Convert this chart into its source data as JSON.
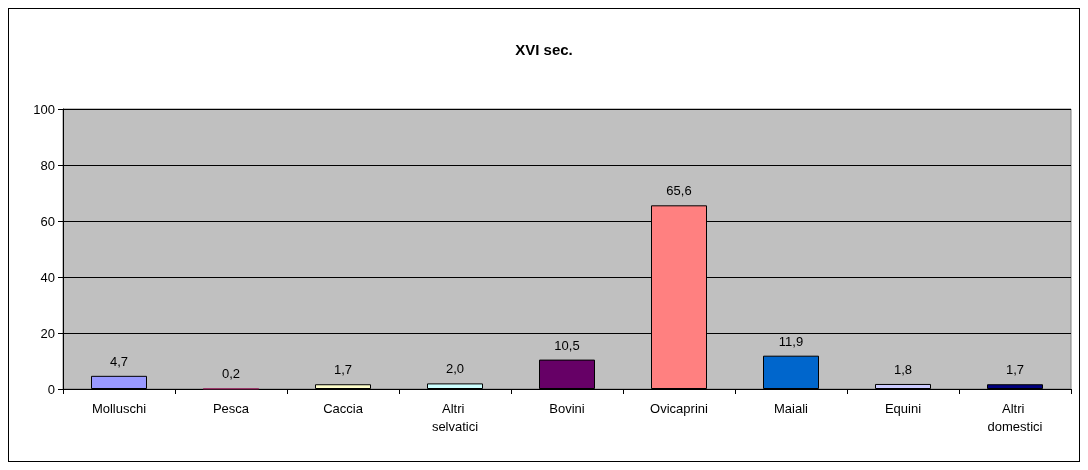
{
  "chart_data": {
    "type": "bar",
    "title": "XVI sec.",
    "categories": [
      "Molluschi",
      "Pesca",
      "Caccia",
      "Altri selvatici",
      "Bovini",
      "Ovicaprini",
      "Maiali",
      "Equini",
      "Altri domestici"
    ],
    "values": [
      4.7,
      0.2,
      1.7,
      2.0,
      10.5,
      65.6,
      11.9,
      1.8,
      1.7
    ],
    "value_labels": [
      "4,7",
      "0,2",
      "1,7",
      "2,0",
      "10,5",
      "65,6",
      "11,9",
      "1,8",
      "1,7"
    ],
    "colors": [
      "#9999ff",
      "#993366",
      "#ffffcc",
      "#ccffff",
      "#660066",
      "#ff8080",
      "#0066cc",
      "#ccccff",
      "#000080"
    ],
    "ylim": [
      0,
      100
    ],
    "yticks": [
      0,
      20,
      40,
      60,
      80,
      100
    ],
    "grid": "y"
  }
}
